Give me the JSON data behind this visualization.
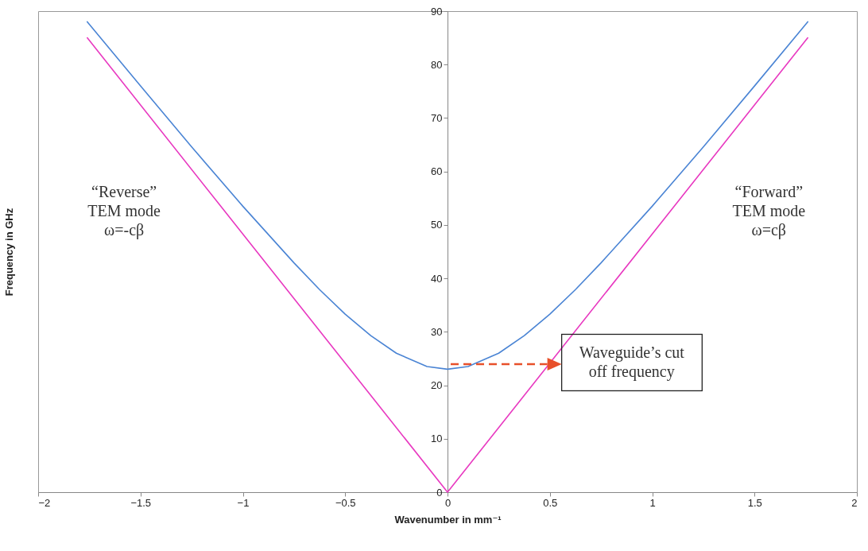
{
  "chart_data": {
    "type": "line",
    "xlabel": "Wavenumber in mm⁻¹",
    "ylabel": "Frequency in GHz",
    "xlim": [
      -2,
      2
    ],
    "ylim": [
      0,
      90
    ],
    "xticks": [
      -2,
      -1.5,
      -1,
      -0.5,
      0,
      0.5,
      1,
      1.5,
      2
    ],
    "yticks": [
      0,
      10,
      20,
      30,
      40,
      50,
      60,
      70,
      80,
      90
    ],
    "series": [
      {
        "color": "#4a84d4",
        "x": [
          -1.76,
          -1.5,
          -1.25,
          -1,
          -0.75,
          -0.625,
          -0.5,
          -0.375,
          -0.25,
          -0.1,
          0,
          0.1,
          0.25,
          0.375,
          0.5,
          0.625,
          0.75,
          1,
          1.25,
          1.5,
          1.76
        ],
        "values": [
          88,
          76,
          64.6,
          53.5,
          42.9,
          37.9,
          33.3,
          29.3,
          26,
          23.5,
          23,
          23.5,
          26,
          29.3,
          33.3,
          37.9,
          42.9,
          53.5,
          64.6,
          76,
          88
        ]
      },
      {
        "color": "#e838c0",
        "x": [
          -1.76,
          0,
          1.76
        ],
        "values": [
          85,
          0,
          85
        ]
      }
    ],
    "annotations": [
      "“Reverse”\nTEM mode\nω=-cβ",
      "“Forward”\nTEM mode\nω=cβ",
      "Waveguide’s cut\noff frequency"
    ],
    "grid": false,
    "marker": "none",
    "line_style": "solid"
  }
}
